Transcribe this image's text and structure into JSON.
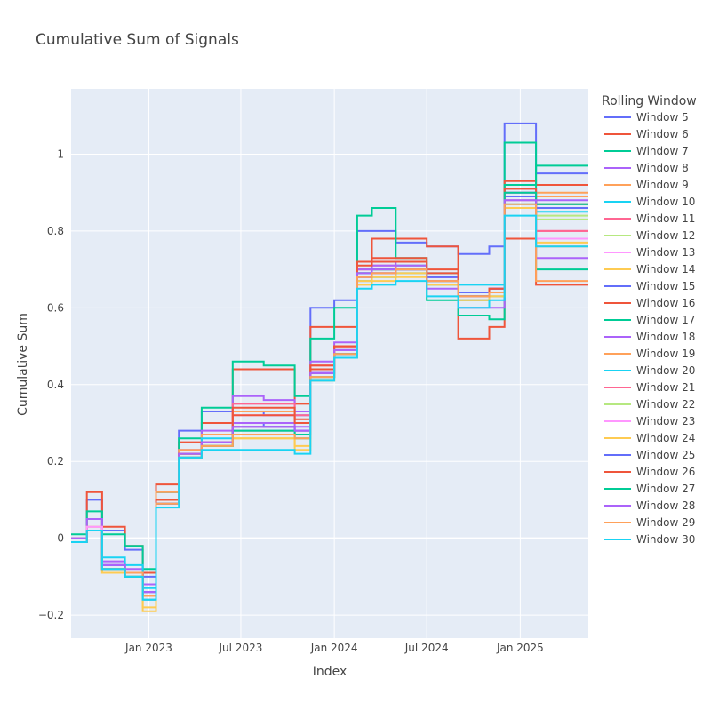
{
  "chart_data": {
    "type": "line",
    "title": "Cumulative Sum of Signals",
    "xlabel": "Index",
    "ylabel": "Cumulative Sum",
    "legend_title": "Rolling Window",
    "legend_position": "right",
    "grid": true,
    "colors": {
      "plot_bg": "#E5ECF6",
      "grid": "#FFFFFF",
      "palette": [
        "#636EFA",
        "#EF553B",
        "#00CC96",
        "#AB63FA",
        "#FFA15A",
        "#19D3F3",
        "#FF6692",
        "#B6E880",
        "#FF97FF",
        "#FECB52"
      ]
    },
    "xlim": [
      "2022-08-01",
      "2025-05-15"
    ],
    "ylim": [
      -0.26,
      1.17
    ],
    "x_ticks": [
      {
        "value": "2023-01-01",
        "label": "Jan 2023"
      },
      {
        "value": "2023-07-01",
        "label": "Jul 2023"
      },
      {
        "value": "2024-01-01",
        "label": "Jan 2024"
      },
      {
        "value": "2024-07-01",
        "label": "Jul 2024"
      },
      {
        "value": "2025-01-01",
        "label": "Jan 2025"
      }
    ],
    "y_ticks": [
      {
        "value": -0.2,
        "label": "−0.2"
      },
      {
        "value": 0,
        "label": "0"
      },
      {
        "value": 0.2,
        "label": "0.2"
      },
      {
        "value": 0.4,
        "label": "0.4"
      },
      {
        "value": 0.6,
        "label": "0.6"
      },
      {
        "value": 0.8,
        "label": "0.8"
      },
      {
        "value": 1,
        "label": "1"
      }
    ],
    "x": [
      "2022-08-01",
      "2022-09-01",
      "2022-10-01",
      "2022-11-15",
      "2022-12-20",
      "2023-01-15",
      "2023-03-01",
      "2023-04-15",
      "2023-06-15",
      "2023-08-15",
      "2023-10-15",
      "2023-11-15",
      "2024-01-01",
      "2024-02-15",
      "2024-03-15",
      "2024-05-01",
      "2024-07-01",
      "2024-09-01",
      "2024-11-01",
      "2024-12-01",
      "2025-02-01",
      "2025-05-15"
    ],
    "series": [
      {
        "name": "Window 5",
        "values": [
          -0.01,
          0.1,
          0.02,
          -0.03,
          -0.1,
          0.12,
          0.28,
          0.33,
          0.33,
          0.32,
          0.32,
          0.6,
          0.62,
          0.8,
          0.8,
          0.77,
          0.76,
          0.74,
          0.76,
          1.08,
          0.95,
          0.95
        ]
      },
      {
        "name": "Window 6",
        "values": [
          0.0,
          0.12,
          0.03,
          -0.02,
          -0.09,
          0.14,
          0.25,
          0.3,
          0.44,
          0.44,
          0.35,
          0.55,
          0.55,
          0.7,
          0.78,
          0.78,
          0.76,
          0.52,
          0.55,
          0.78,
          0.66,
          0.66
        ]
      },
      {
        "name": "Window 7",
        "values": [
          0.01,
          0.07,
          0.01,
          -0.02,
          -0.08,
          0.12,
          0.26,
          0.34,
          0.46,
          0.45,
          0.37,
          0.52,
          0.6,
          0.84,
          0.86,
          0.73,
          0.62,
          0.58,
          0.57,
          1.03,
          0.7,
          0.7
        ]
      },
      {
        "name": "Window 8",
        "values": [
          0.0,
          0.05,
          -0.06,
          -0.08,
          -0.12,
          0.1,
          0.23,
          0.28,
          0.37,
          0.36,
          0.33,
          0.46,
          0.51,
          0.72,
          0.72,
          0.7,
          0.65,
          0.6,
          0.6,
          0.88,
          0.78,
          0.78
        ]
      },
      {
        "name": "Window 9",
        "values": [
          -0.01,
          0.03,
          -0.07,
          -0.09,
          -0.14,
          0.12,
          0.23,
          0.27,
          0.33,
          0.33,
          0.3,
          0.44,
          0.5,
          0.68,
          0.7,
          0.71,
          0.68,
          0.63,
          0.64,
          0.9,
          0.9,
          0.9
        ]
      },
      {
        "name": "Window 10",
        "values": [
          -0.01,
          0.02,
          -0.05,
          -0.07,
          -0.13,
          0.1,
          0.22,
          0.26,
          0.27,
          0.27,
          0.26,
          0.42,
          0.48,
          0.69,
          0.7,
          0.71,
          0.69,
          0.66,
          0.66,
          0.86,
          0.87,
          0.87
        ]
      },
      {
        "name": "Window 11",
        "values": [
          -0.01,
          0.02,
          -0.08,
          -0.1,
          -0.16,
          0.1,
          0.21,
          0.25,
          0.35,
          0.35,
          0.32,
          0.45,
          0.5,
          0.7,
          0.71,
          0.7,
          0.66,
          0.63,
          0.64,
          0.91,
          0.8,
          0.8
        ]
      },
      {
        "name": "Window 12",
        "values": [
          -0.01,
          0.02,
          -0.08,
          -0.1,
          -0.15,
          0.1,
          0.22,
          0.25,
          0.28,
          0.28,
          0.27,
          0.44,
          0.49,
          0.68,
          0.7,
          0.7,
          0.67,
          0.63,
          0.64,
          0.89,
          0.83,
          0.83
        ]
      },
      {
        "name": "Window 13",
        "values": [
          -0.01,
          0.03,
          -0.07,
          -0.1,
          -0.15,
          0.09,
          0.21,
          0.24,
          0.32,
          0.32,
          0.3,
          0.42,
          0.48,
          0.67,
          0.69,
          0.7,
          0.68,
          0.62,
          0.64,
          0.9,
          0.76,
          0.76
        ]
      },
      {
        "name": "Window 14",
        "values": [
          -0.01,
          0.02,
          -0.09,
          -0.1,
          -0.19,
          0.09,
          0.22,
          0.24,
          0.26,
          0.26,
          0.23,
          0.41,
          0.47,
          0.66,
          0.67,
          0.68,
          0.66,
          0.62,
          0.63,
          0.86,
          0.76,
          0.76
        ]
      },
      {
        "name": "Window 15",
        "values": [
          -0.01,
          0.02,
          -0.07,
          -0.09,
          -0.14,
          0.09,
          0.21,
          0.25,
          0.3,
          0.29,
          0.28,
          0.43,
          0.48,
          0.68,
          0.69,
          0.7,
          0.68,
          0.64,
          0.65,
          0.88,
          0.78,
          0.78
        ]
      },
      {
        "name": "Window 16",
        "values": [
          -0.01,
          0.02,
          -0.08,
          -0.09,
          -0.15,
          0.1,
          0.22,
          0.25,
          0.34,
          0.34,
          0.31,
          0.45,
          0.5,
          0.72,
          0.73,
          0.73,
          0.7,
          0.63,
          0.65,
          0.93,
          0.92,
          0.92
        ]
      },
      {
        "name": "Window 17",
        "values": [
          -0.01,
          0.02,
          -0.08,
          -0.1,
          -0.15,
          0.09,
          0.21,
          0.24,
          0.28,
          0.28,
          0.27,
          0.42,
          0.48,
          0.69,
          0.7,
          0.7,
          0.67,
          0.63,
          0.64,
          0.92,
          0.97,
          0.97
        ]
      },
      {
        "name": "Window 18",
        "values": [
          -0.01,
          0.02,
          -0.07,
          -0.09,
          -0.14,
          0.09,
          0.22,
          0.25,
          0.3,
          0.3,
          0.29,
          0.43,
          0.49,
          0.7,
          0.71,
          0.71,
          0.68,
          0.64,
          0.65,
          0.9,
          0.88,
          0.88
        ]
      },
      {
        "name": "Window 19",
        "values": [
          -0.01,
          0.02,
          -0.08,
          -0.09,
          -0.15,
          0.09,
          0.21,
          0.24,
          0.27,
          0.27,
          0.26,
          0.42,
          0.48,
          0.68,
          0.69,
          0.7,
          0.67,
          0.63,
          0.64,
          0.88,
          0.89,
          0.89
        ]
      },
      {
        "name": "Window 20",
        "values": [
          -0.01,
          0.02,
          -0.08,
          -0.1,
          -0.16,
          0.09,
          0.21,
          0.24,
          0.27,
          0.27,
          0.26,
          0.42,
          0.47,
          0.67,
          0.68,
          0.69,
          0.66,
          0.62,
          0.63,
          0.87,
          0.85,
          0.85
        ]
      },
      {
        "name": "Window 21",
        "values": [
          -0.01,
          0.02,
          -0.08,
          -0.1,
          -0.15,
          0.09,
          0.21,
          0.24,
          0.29,
          0.29,
          0.28,
          0.43,
          0.48,
          0.69,
          0.7,
          0.7,
          0.67,
          0.63,
          0.64,
          0.89,
          0.8,
          0.8
        ]
      },
      {
        "name": "Window 22",
        "values": [
          -0.01,
          0.02,
          -0.08,
          -0.1,
          -0.15,
          0.09,
          0.21,
          0.24,
          0.27,
          0.27,
          0.26,
          0.42,
          0.48,
          0.68,
          0.69,
          0.7,
          0.67,
          0.63,
          0.64,
          0.88,
          0.84,
          0.84
        ]
      },
      {
        "name": "Window 23",
        "values": [
          -0.01,
          0.02,
          -0.08,
          -0.1,
          -0.15,
          0.09,
          0.21,
          0.24,
          0.28,
          0.28,
          0.27,
          0.42,
          0.48,
          0.68,
          0.69,
          0.7,
          0.67,
          0.63,
          0.64,
          0.88,
          0.78,
          0.78
        ]
      },
      {
        "name": "Window 24",
        "values": [
          -0.01,
          0.02,
          -0.09,
          -0.1,
          -0.18,
          0.09,
          0.21,
          0.24,
          0.26,
          0.26,
          0.24,
          0.41,
          0.47,
          0.67,
          0.68,
          0.69,
          0.66,
          0.62,
          0.63,
          0.86,
          0.77,
          0.77
        ]
      },
      {
        "name": "Window 25",
        "values": [
          -0.01,
          0.02,
          -0.07,
          -0.09,
          -0.14,
          0.09,
          0.21,
          0.25,
          0.29,
          0.29,
          0.28,
          0.43,
          0.48,
          0.68,
          0.69,
          0.7,
          0.68,
          0.64,
          0.65,
          0.89,
          0.86,
          0.86
        ]
      },
      {
        "name": "Window 26",
        "values": [
          -0.01,
          0.02,
          -0.08,
          -0.09,
          -0.15,
          0.1,
          0.22,
          0.25,
          0.32,
          0.32,
          0.3,
          0.44,
          0.5,
          0.71,
          0.72,
          0.72,
          0.69,
          0.63,
          0.65,
          0.91,
          0.87,
          0.87
        ]
      },
      {
        "name": "Window 27",
        "values": [
          -0.01,
          0.02,
          -0.08,
          -0.1,
          -0.15,
          0.09,
          0.21,
          0.24,
          0.28,
          0.28,
          0.27,
          0.42,
          0.48,
          0.69,
          0.7,
          0.7,
          0.67,
          0.63,
          0.64,
          0.9,
          0.87,
          0.87
        ]
      },
      {
        "name": "Window 28",
        "values": [
          -0.01,
          0.02,
          -0.07,
          -0.09,
          -0.14,
          0.09,
          0.22,
          0.25,
          0.29,
          0.29,
          0.28,
          0.43,
          0.49,
          0.69,
          0.7,
          0.7,
          0.67,
          0.63,
          0.64,
          0.88,
          0.73,
          0.73
        ]
      },
      {
        "name": "Window 29",
        "values": [
          -0.01,
          0.02,
          -0.08,
          -0.09,
          -0.15,
          0.09,
          0.21,
          0.24,
          0.27,
          0.27,
          0.26,
          0.42,
          0.48,
          0.68,
          0.69,
          0.7,
          0.67,
          0.63,
          0.64,
          0.87,
          0.67,
          0.67
        ]
      },
      {
        "name": "Window 30",
        "values": [
          -0.01,
          0.02,
          -0.08,
          -0.1,
          -0.16,
          0.08,
          0.21,
          0.23,
          0.23,
          0.23,
          0.22,
          0.41,
          0.47,
          0.65,
          0.66,
          0.67,
          0.63,
          0.6,
          0.62,
          0.84,
          0.76,
          0.76
        ]
      }
    ]
  }
}
